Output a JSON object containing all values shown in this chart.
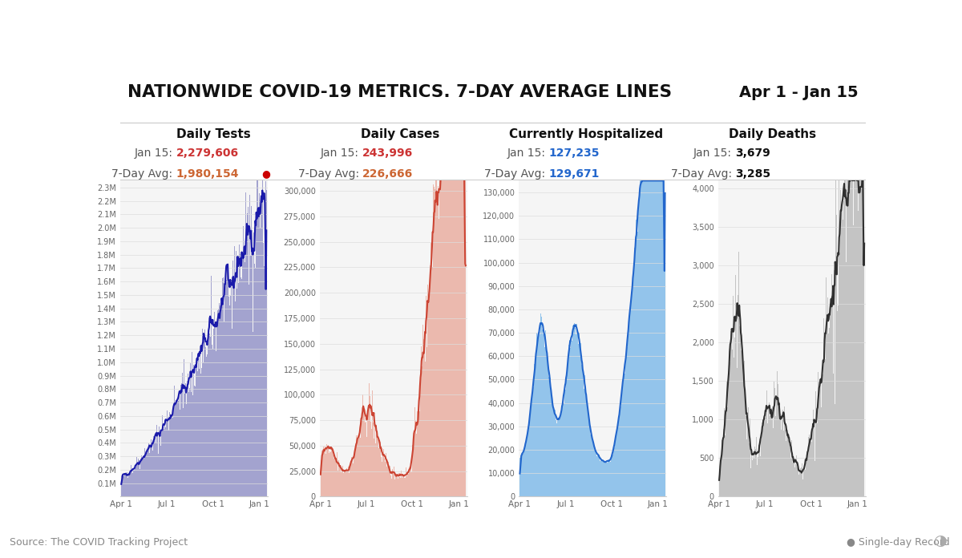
{
  "title": "NATIONWIDE COVID-19 METRICS. 7-DAY AVERAGE LINES",
  "date_range": "Apr 1 - Jan 15",
  "source": "Source: The COVID Tracking Project",
  "panels": [
    {
      "label": "Daily Tests",
      "jan15": "2,279,606",
      "avg7": "1,980,154",
      "avg7_record": true,
      "color_fill": "#8080c0",
      "color_line": "#1a1aaa",
      "color_value": "#cc3333",
      "color_avg": "#cc6633",
      "yticks": [
        "0.1M",
        "0.2M",
        "0.3M",
        "0.4M",
        "0.5M",
        "0.6M",
        "0.7M",
        "0.8M",
        "0.9M",
        "1.0M",
        "1.1M",
        "1.2M",
        "1.3M",
        "1.4M",
        "1.5M",
        "1.6M",
        "1.7M",
        "1.8M",
        "1.9M",
        "2.0M",
        "2.1M",
        "2.2M",
        "2.3M"
      ],
      "ytick_vals": [
        100000,
        200000,
        300000,
        400000,
        500000,
        600000,
        700000,
        800000,
        900000,
        1000000,
        1100000,
        1200000,
        1300000,
        1400000,
        1500000,
        1600000,
        1700000,
        1800000,
        1900000,
        2000000,
        2100000,
        2200000,
        2300000
      ],
      "ymax": 2350000,
      "ymin": 0
    },
    {
      "label": "Daily Cases",
      "jan15": "243,996",
      "avg7": "226,666",
      "avg7_record": false,
      "color_fill": "#e8a090",
      "color_line": "#cc4433",
      "color_value": "#cc3333",
      "color_avg": "#cc6633",
      "yticks": [
        "0",
        "25,000",
        "50,000",
        "75,000",
        "100,000",
        "125,000",
        "150,000",
        "175,000",
        "200,000",
        "225,000",
        "250,000",
        "275,000",
        "300,000"
      ],
      "ytick_vals": [
        0,
        25000,
        50000,
        75000,
        100000,
        125000,
        150000,
        175000,
        200000,
        225000,
        250000,
        275000,
        300000
      ],
      "ymax": 310000,
      "ymin": 0
    },
    {
      "label": "Currently Hospitalized",
      "jan15": "127,235",
      "avg7": "129,671",
      "avg7_record": false,
      "color_fill": "#6ab0e8",
      "color_line": "#2266cc",
      "color_value": "#2266cc",
      "color_avg": "#2266cc",
      "yticks": [
        "0",
        "10,000",
        "20,000",
        "30,000",
        "40,000",
        "50,000",
        "60,000",
        "70,000",
        "80,000",
        "90,000",
        "100,000",
        "110,000",
        "120,000",
        "130,000"
      ],
      "ytick_vals": [
        0,
        10000,
        20000,
        30000,
        40000,
        50000,
        60000,
        70000,
        80000,
        90000,
        100000,
        110000,
        120000,
        130000
      ],
      "ymax": 135000,
      "ymin": 0
    },
    {
      "label": "Daily Deaths",
      "jan15": "3,679",
      "avg7": "3,285",
      "avg7_record": false,
      "color_fill": "#b0b0b0",
      "color_line": "#303030",
      "color_value": "#303030",
      "color_avg": "#303030",
      "yticks": [
        "0",
        "500",
        "1,000",
        "1,500",
        "2,000",
        "2,500",
        "3,000",
        "3,500",
        "4,000"
      ],
      "ytick_vals": [
        0,
        500,
        1000,
        1500,
        2000,
        2500,
        3000,
        3500,
        4000
      ],
      "ymax": 4100,
      "ymin": 0
    }
  ],
  "xtick_labels": [
    "Apr 1",
    "Jul 1",
    "Oct 1",
    "Jan 1"
  ],
  "background_color": "#ffffff",
  "panel_bg": "#f8f8f8"
}
